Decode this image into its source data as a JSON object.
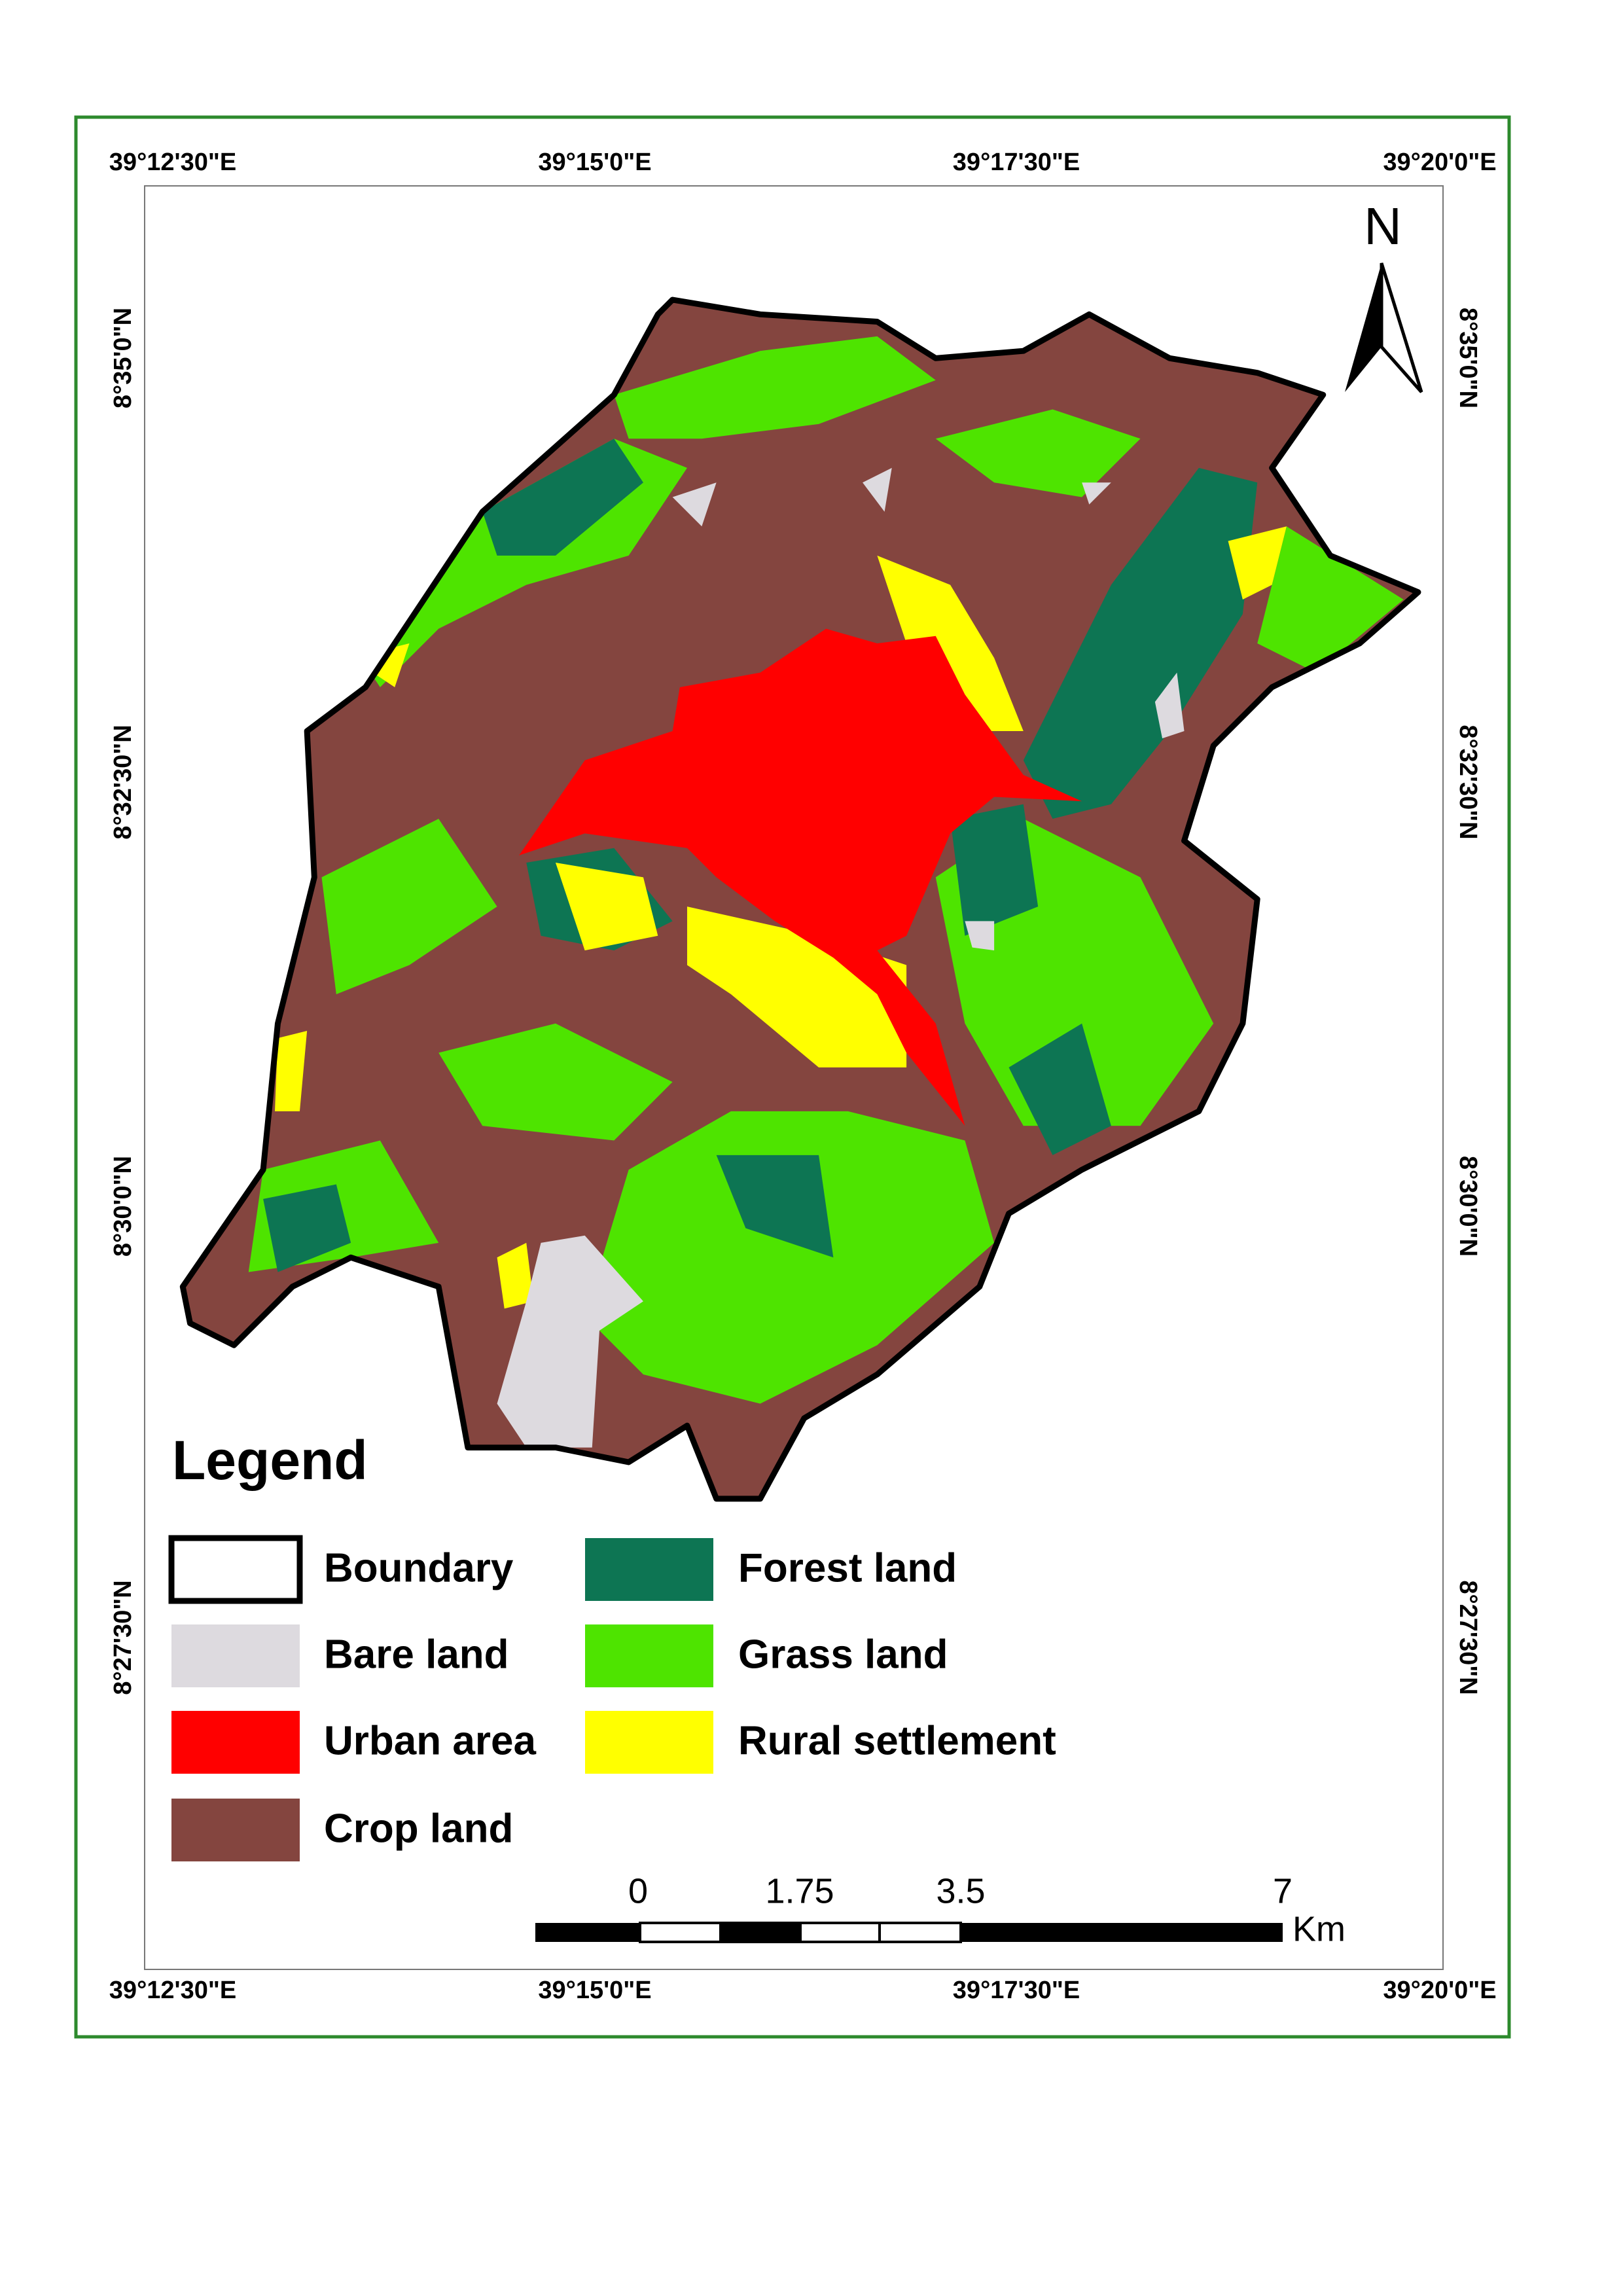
{
  "map": {
    "top_axis_labels": [
      "39°12'30\"E",
      "39°15'0\"E",
      "39°17'30\"E",
      "39°20'0\"E"
    ],
    "bottom_axis_labels": [
      "39°12'30\"E",
      "39°15'0\"E",
      "39°17'30\"E",
      "39°20'0\"E"
    ],
    "left_axis_labels": [
      "8°35'0\"N",
      "8°32'30\"N",
      "8°30'0\"N",
      "8°27'30\"N"
    ],
    "right_axis_labels": [
      "8°35'0\"N",
      "8°32'30\"N",
      "8°30'0\"N",
      "8°27'30\"N"
    ],
    "north_label": "N",
    "legend": {
      "title": "Legend",
      "items": [
        {
          "label": "Boundary"
        },
        {
          "label": "Bare land",
          "color": "#dddadf"
        },
        {
          "label": "Urban area",
          "color": "#ff0000"
        },
        {
          "label": "Crop land",
          "color": "#84453f"
        },
        {
          "label": "Forest land",
          "color": "#0d7553"
        },
        {
          "label": "Grass land",
          "color": "#4ee400"
        },
        {
          "label": "Rural settlement",
          "color": "#ffff00"
        }
      ]
    },
    "scale_bar": {
      "labels": [
        "0",
        "1.75",
        "3.5",
        "7"
      ],
      "unit": "Km"
    }
  }
}
